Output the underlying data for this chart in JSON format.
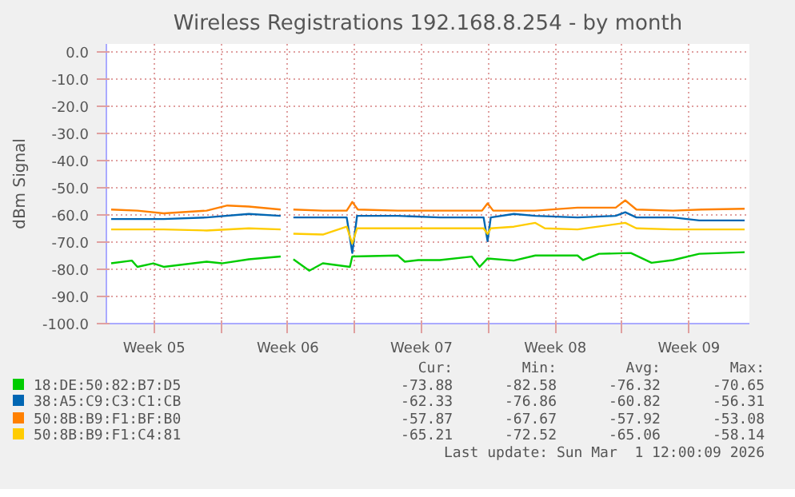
{
  "chart_data": {
    "type": "line",
    "title": "Wireless Registrations 192.168.8.254 - by month",
    "ylabel": "dBm Signal",
    "xlim": [
      "2026-01-27T00:00",
      "2026-03-01T16:00"
    ],
    "xticks": [
      {
        "value": "2026-01-29T12:00",
        "label": "Week 05"
      },
      {
        "value": "2026-02-02T00:00",
        "label": null
      },
      {
        "value": "2026-02-05T12:00",
        "label": "Week 06"
      },
      {
        "value": "2026-02-09T00:00",
        "label": null
      },
      {
        "value": "2026-02-12T12:00",
        "label": "Week 07"
      },
      {
        "value": "2026-02-16T00:00",
        "label": null
      },
      {
        "value": "2026-02-19T12:00",
        "label": "Week 08"
      },
      {
        "value": "2026-02-23T00:00",
        "label": null
      },
      {
        "value": "2026-02-26T12:00",
        "label": "Week 09"
      }
    ],
    "ylim": [
      -100,
      3
    ],
    "yticks": [
      {
        "value": 0,
        "label": "0.0"
      },
      {
        "value": -10,
        "label": "-10.0"
      },
      {
        "value": -20,
        "label": "-20.0"
      },
      {
        "value": -30,
        "label": "-30.0"
      },
      {
        "value": -40,
        "label": "-40.0"
      },
      {
        "value": -50,
        "label": "-50.0"
      },
      {
        "value": -60,
        "label": "-60.0"
      },
      {
        "value": -70,
        "label": "-70.0"
      },
      {
        "value": -80,
        "label": "-80.0"
      },
      {
        "value": -90,
        "label": "-90.0"
      },
      {
        "value": -100,
        "label": "-100.0"
      }
    ],
    "grid": true,
    "legend": "bottom",
    "marker": "none",
    "line_style": "solid",
    "series": [
      {
        "name": "18:DE:50:82:B7:D5",
        "color": "#00cc00",
        "x": [
          "2026-01-27T06:00",
          "2026-01-28T08:00",
          "2026-01-28T15:00",
          "2026-01-29T11:00",
          "2026-01-30T00:00",
          "2026-02-01T06:00",
          "2026-02-02T01:00",
          "2026-02-03T11:00",
          "2026-02-05T03:00",
          "2026-02-05T11:00",
          "2026-02-05T19:00",
          "2026-02-06T15:00",
          "2026-02-07T08:00",
          "2026-02-08T18:00",
          "2026-02-08T21:00",
          "2026-02-11T06:00",
          "2026-02-11T15:00",
          "2026-02-12T08:00",
          "2026-02-13T11:00",
          "2026-02-15T03:00",
          "2026-02-15T13:00",
          "2026-02-15T23:00",
          "2026-02-17T08:00",
          "2026-02-18T11:00",
          "2026-02-20T16:00",
          "2026-02-20T23:00",
          "2026-02-21T19:00",
          "2026-02-23T11:00",
          "2026-02-24T13:00",
          "2026-02-25T16:00",
          "2026-02-27T01:00",
          "2026-03-01T10:00"
        ],
        "values": [
          -77.8,
          -76.8,
          -79.1,
          -77.8,
          -79.1,
          -77.2,
          -77.8,
          -76.3,
          -75.3,
          null,
          -76.3,
          -80.5,
          -77.8,
          -79.1,
          -75.3,
          -74.9,
          -77.2,
          -76.6,
          -76.6,
          -75.3,
          -79.1,
          -76.0,
          -76.8,
          -74.9,
          -74.9,
          -76.6,
          -74.3,
          -74.0,
          -77.6,
          -76.6,
          -74.3,
          -73.7
        ]
      },
      {
        "name": "38:A5:C9:C3:C1:CB",
        "color": "#0066b3",
        "x": [
          "2026-01-27T06:00",
          "2026-01-30T00:00",
          "2026-02-01T06:00",
          "2026-02-03T11:00",
          "2026-02-05T03:00",
          "2026-02-05T11:00",
          "2026-02-05T19:00",
          "2026-02-08T14:00",
          "2026-02-08T21:00",
          "2026-02-09T03:00",
          "2026-02-11T06:00",
          "2026-02-13T11:00",
          "2026-02-15T18:00",
          "2026-02-15T23:00",
          "2026-02-16T03:00",
          "2026-02-17T08:00",
          "2026-02-18T11:00",
          "2026-02-20T16:00",
          "2026-02-22T16:00",
          "2026-02-23T04:00",
          "2026-02-23T18:00",
          "2026-02-25T16:00",
          "2026-02-27T01:00",
          "2026-03-01T10:00"
        ],
        "values": [
          -61.5,
          -61.5,
          -60.9,
          -59.6,
          -60.3,
          null,
          -60.9,
          -60.9,
          -74.0,
          -60.3,
          -60.3,
          -60.9,
          -60.9,
          -69.6,
          -60.9,
          -59.6,
          -60.3,
          -60.9,
          -60.3,
          -59.0,
          -60.9,
          -60.9,
          -62.0,
          -62.0
        ]
      },
      {
        "name": "50:8B:B9:F1:BF:B0",
        "color": "#ff8000",
        "x": [
          "2026-01-27T06:00",
          "2026-01-28T15:00",
          "2026-01-30T00:00",
          "2026-02-01T06:00",
          "2026-02-02T08:00",
          "2026-02-03T11:00",
          "2026-02-05T03:00",
          "2026-02-05T11:00",
          "2026-02-05T19:00",
          "2026-02-07T08:00",
          "2026-02-08T14:00",
          "2026-02-08T21:00",
          "2026-02-09T04:00",
          "2026-02-11T06:00",
          "2026-02-13T11:00",
          "2026-02-15T16:00",
          "2026-02-15T23:00",
          "2026-02-16T06:00",
          "2026-02-18T11:00",
          "2026-02-20T16:00",
          "2026-02-22T16:00",
          "2026-02-23T04:00",
          "2026-02-23T18:00",
          "2026-02-25T16:00",
          "2026-02-27T04:00",
          "2026-03-01T10:00"
        ],
        "values": [
          -58.0,
          -58.4,
          -59.4,
          -58.4,
          -56.5,
          -56.9,
          -58.0,
          null,
          -58.0,
          -58.4,
          -58.4,
          -55.2,
          -58.0,
          -58.4,
          -58.4,
          -58.4,
          -55.7,
          -58.4,
          -58.4,
          -57.3,
          -57.3,
          -54.6,
          -58.0,
          -58.4,
          -58.0,
          -57.7
        ]
      },
      {
        "name": "50:8B:B9:F1:C4:81",
        "color": "#ffcc00",
        "x": [
          "2026-01-27T06:00",
          "2026-01-30T00:00",
          "2026-02-01T06:00",
          "2026-02-03T11:00",
          "2026-02-05T03:00",
          "2026-02-05T11:00",
          "2026-02-05T19:00",
          "2026-02-07T08:00",
          "2026-02-08T14:00",
          "2026-02-08T21:00",
          "2026-02-09T03:00",
          "2026-02-11T06:00",
          "2026-02-13T11:00",
          "2026-02-15T18:00",
          "2026-02-15T23:00",
          "2026-02-16T03:00",
          "2026-02-17T08:00",
          "2026-02-18T11:00",
          "2026-02-18T23:00",
          "2026-02-20T16:00",
          "2026-02-23T04:00",
          "2026-02-23T18:00",
          "2026-02-25T16:00",
          "2026-03-01T10:00"
        ],
        "values": [
          -65.3,
          -65.3,
          -65.7,
          -64.9,
          -65.3,
          null,
          -66.9,
          -67.2,
          -64.3,
          -70.5,
          -64.9,
          -64.9,
          -64.9,
          -64.9,
          -67.0,
          -64.9,
          -64.3,
          -62.9,
          -64.9,
          -65.3,
          -62.9,
          -64.9,
          -65.3,
          -65.3
        ]
      }
    ],
    "annotations": [
      "Cur:",
      "Min:",
      "Avg:",
      "Max:",
      "-73.88",
      "-82.58",
      "-76.32",
      "-70.65",
      "-62.33",
      "-76.86",
      "-60.82",
      "-56.31",
      "-57.87",
      "-67.67",
      "-57.92",
      "-53.08",
      "-65.21",
      "-72.52",
      "-65.06",
      "-58.14",
      "Last update: Sun Mar  1 12:00:09 2026"
    ]
  }
}
